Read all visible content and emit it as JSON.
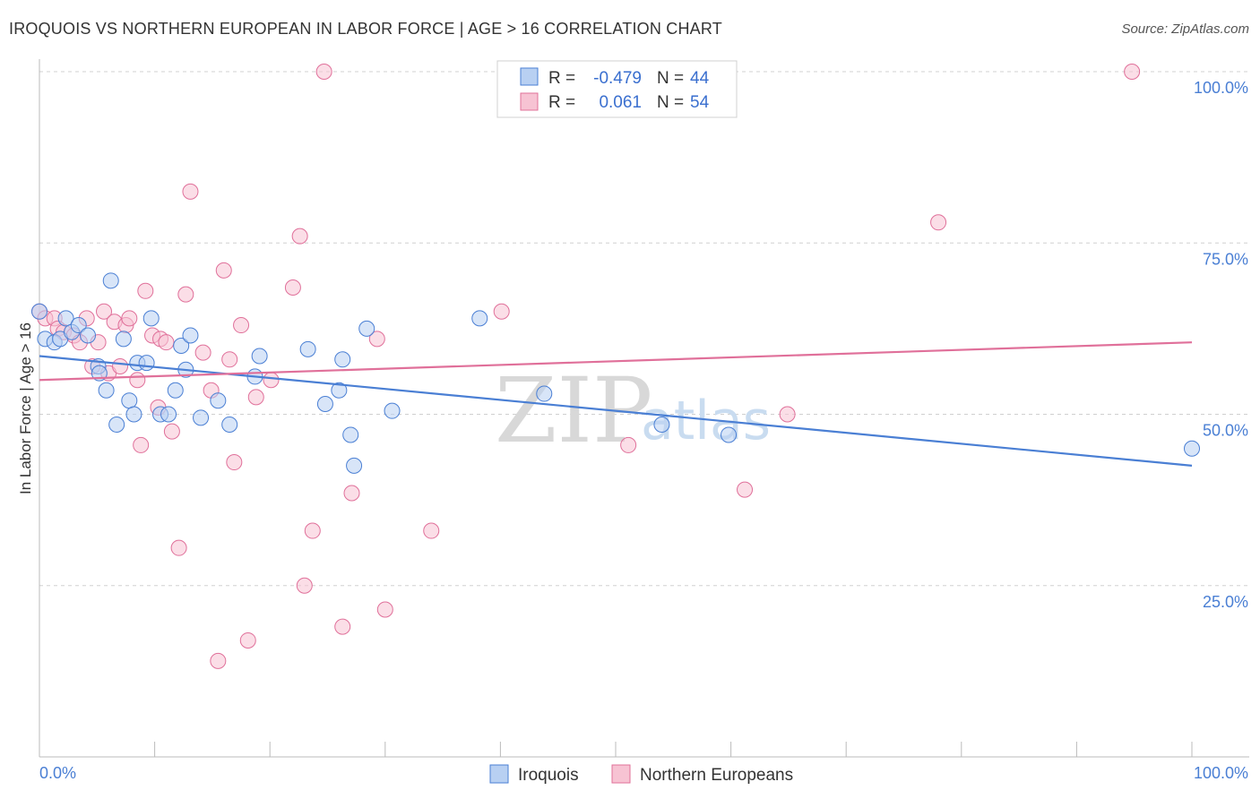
{
  "header": {
    "title": "IROQUOIS VS NORTHERN EUROPEAN IN LABOR FORCE | AGE > 16 CORRELATION CHART",
    "source": "Source: ZipAtlas.com"
  },
  "watermark": {
    "zip": "ZIP",
    "atlas": "atlas"
  },
  "legend": {
    "rows": [
      {
        "r_label": "R =",
        "r_value": "-0.479",
        "n_label": "N =",
        "n_value": "44"
      },
      {
        "r_label": "R =",
        "r_value": "0.061",
        "n_label": "N =",
        "n_value": "54"
      }
    ]
  },
  "bottom_legend": {
    "series1": "Iroquois",
    "series2": "Northern Europeans"
  },
  "colors": {
    "blue": "#4a7fd4",
    "blue_fill": "#b8d0f2",
    "pink": "#e0709a",
    "pink_fill": "#f7c3d3",
    "grid": "#d0d0d0"
  },
  "chart_data": {
    "type": "scatter",
    "title": "IROQUOIS VS NORTHERN EUROPEAN IN LABOR FORCE | AGE > 16 CORRELATION CHART",
    "ylabel": "In Labor Force | Age > 16",
    "xlabel": "",
    "xlim": [
      0,
      100
    ],
    "ylim": [
      0,
      100
    ],
    "x_tick_labels": [
      "0.0%",
      "100.0%"
    ],
    "y_ticks": [
      25,
      50,
      75,
      100
    ],
    "y_tick_labels": [
      "25.0%",
      "50.0%",
      "75.0%",
      "100.0%"
    ],
    "grid": "horizontal dashed",
    "series": [
      {
        "name": "Iroquois",
        "color": "#4a7fd4",
        "trend": {
          "x0": 0,
          "y0": 58.5,
          "x1": 100,
          "y1": 42.5
        },
        "points": [
          [
            0,
            65
          ],
          [
            0.5,
            61
          ],
          [
            1.3,
            60.5
          ],
          [
            1.8,
            61
          ],
          [
            2.3,
            64
          ],
          [
            2.8,
            62
          ],
          [
            3.4,
            63
          ],
          [
            4.2,
            61.5
          ],
          [
            5.1,
            57
          ],
          [
            5.2,
            56
          ],
          [
            5.8,
            53.5
          ],
          [
            6.2,
            69.5
          ],
          [
            6.7,
            48.5
          ],
          [
            7.3,
            61
          ],
          [
            7.8,
            52
          ],
          [
            8.2,
            50
          ],
          [
            8.5,
            57.5
          ],
          [
            9.3,
            57.5
          ],
          [
            9.7,
            64
          ],
          [
            10.5,
            50
          ],
          [
            11.2,
            50
          ],
          [
            11.8,
            53.5
          ],
          [
            12.3,
            60
          ],
          [
            12.7,
            56.5
          ],
          [
            13.1,
            61.5
          ],
          [
            14.0,
            49.5
          ],
          [
            15.5,
            52
          ],
          [
            16.5,
            48.5
          ],
          [
            18.7,
            55.5
          ],
          [
            19.1,
            58.5
          ],
          [
            23.3,
            59.5
          ],
          [
            24.8,
            51.5
          ],
          [
            26.0,
            53.5
          ],
          [
            26.3,
            58
          ],
          [
            27.0,
            47
          ],
          [
            27.3,
            42.5
          ],
          [
            28.4,
            62.5
          ],
          [
            30.6,
            50.5
          ],
          [
            38.2,
            64
          ],
          [
            43.8,
            53
          ],
          [
            54.0,
            48.5
          ],
          [
            59.8,
            47
          ],
          [
            100,
            45
          ]
        ]
      },
      {
        "name": "Northern Europeans",
        "color": "#e0709a",
        "trend": {
          "x0": 0,
          "y0": 55,
          "x1": 100,
          "y1": 60.5
        },
        "points": [
          [
            0,
            65
          ],
          [
            0.5,
            64
          ],
          [
            1.3,
            64
          ],
          [
            1.6,
            62.5
          ],
          [
            2.1,
            62
          ],
          [
            3.0,
            61.5
          ],
          [
            3.5,
            60.5
          ],
          [
            4.1,
            64
          ],
          [
            4.6,
            57
          ],
          [
            5.1,
            60.5
          ],
          [
            5.6,
            65
          ],
          [
            6.0,
            56
          ],
          [
            6.5,
            63.5
          ],
          [
            7.0,
            57
          ],
          [
            7.5,
            63
          ],
          [
            7.8,
            64
          ],
          [
            8.5,
            55
          ],
          [
            8.8,
            45.5
          ],
          [
            9.2,
            68
          ],
          [
            9.8,
            61.5
          ],
          [
            10.3,
            51
          ],
          [
            10.5,
            61
          ],
          [
            11.0,
            60.5
          ],
          [
            11.5,
            47.5
          ],
          [
            12.1,
            30.5
          ],
          [
            12.7,
            67.5
          ],
          [
            13.1,
            82.5
          ],
          [
            14.2,
            59
          ],
          [
            14.9,
            53.5
          ],
          [
            15.5,
            14
          ],
          [
            16.0,
            71
          ],
          [
            16.5,
            58
          ],
          [
            16.9,
            43
          ],
          [
            17.5,
            63
          ],
          [
            18.1,
            17
          ],
          [
            18.8,
            52.5
          ],
          [
            20.1,
            55
          ],
          [
            22.0,
            68.5
          ],
          [
            22.6,
            76
          ],
          [
            23.0,
            25
          ],
          [
            23.7,
            33
          ],
          [
            24.7,
            100
          ],
          [
            26.3,
            19
          ],
          [
            27.1,
            38.5
          ],
          [
            29.3,
            61
          ],
          [
            30.0,
            21.5
          ],
          [
            34.0,
            33
          ],
          [
            40.1,
            65
          ],
          [
            51.1,
            45.5
          ],
          [
            61.2,
            39
          ],
          [
            64.9,
            50
          ],
          [
            78.0,
            78
          ],
          [
            94.8,
            100
          ]
        ]
      }
    ]
  }
}
